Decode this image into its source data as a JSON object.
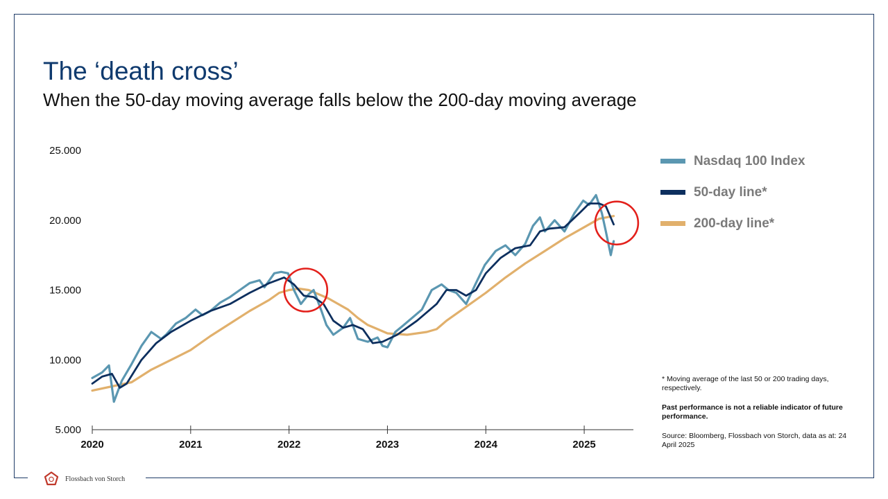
{
  "header": {
    "title": "The ‘death cross’",
    "subtitle": "When the 50-day moving average falls below the 200-day moving average"
  },
  "chart_data": {
    "type": "line",
    "title": "The ‘death cross’",
    "subtitle": "When the 50-day moving average falls below the 200-day moving average",
    "xlabel": "",
    "ylabel": "",
    "x_ticks": [
      "2020",
      "2021",
      "2022",
      "2023",
      "2024",
      "2025"
    ],
    "y_ticks": [
      "5.000",
      "10.000",
      "15.000",
      "20.000",
      "25.000"
    ],
    "xlim": [
      2020.0,
      2025.5
    ],
    "ylim": [
      5000,
      25000
    ],
    "legend_position": "right",
    "series": [
      {
        "name": "Nasdaq 100 Index",
        "color": "#5b97b1",
        "x": [
          2020.0,
          2020.1,
          2020.17,
          2020.22,
          2020.3,
          2020.4,
          2020.5,
          2020.6,
          2020.7,
          2020.75,
          2020.85,
          2020.95,
          2021.05,
          2021.12,
          2021.2,
          2021.3,
          2021.4,
          2021.5,
          2021.6,
          2021.7,
          2021.75,
          2021.85,
          2021.92,
          2021.99,
          2022.05,
          2022.12,
          2022.2,
          2022.25,
          2022.33,
          2022.38,
          2022.45,
          2022.55,
          2022.62,
          2022.7,
          2022.8,
          2022.9,
          2022.95,
          2023.0,
          2023.08,
          2023.15,
          2023.25,
          2023.35,
          2023.45,
          2023.55,
          2023.62,
          2023.7,
          2023.8,
          2023.9,
          2023.99,
          2024.1,
          2024.2,
          2024.3,
          2024.4,
          2024.48,
          2024.55,
          2024.6,
          2024.7,
          2024.8,
          2024.9,
          2024.99,
          2025.05,
          2025.12,
          2025.18,
          2025.22,
          2025.27,
          2025.3
        ],
        "values": [
          8700,
          9100,
          9600,
          7000,
          8500,
          9700,
          11000,
          12000,
          11500,
          11800,
          12600,
          13000,
          13600,
          13200,
          13500,
          14100,
          14500,
          15000,
          15500,
          15700,
          15200,
          16200,
          16300,
          16200,
          15000,
          14000,
          14700,
          15000,
          13500,
          12500,
          11800,
          12300,
          13000,
          11500,
          11300,
          11600,
          11000,
          10900,
          12000,
          12400,
          13000,
          13600,
          15000,
          15400,
          15000,
          14800,
          14000,
          15500,
          16800,
          17800,
          18200,
          17500,
          18300,
          19600,
          20200,
          19200,
          20000,
          19200,
          20500,
          21400,
          21100,
          21800,
          20500,
          19200,
          17500,
          18500
        ]
      },
      {
        "name": "50-day line*",
        "color": "#0d2f5e",
        "x": [
          2020.0,
          2020.1,
          2020.2,
          2020.28,
          2020.35,
          2020.5,
          2020.65,
          2020.8,
          2021.0,
          2021.2,
          2021.4,
          2021.6,
          2021.8,
          2021.95,
          2022.05,
          2022.15,
          2022.25,
          2022.35,
          2022.45,
          2022.55,
          2022.65,
          2022.75,
          2022.85,
          2022.95,
          2023.1,
          2023.3,
          2023.5,
          2023.6,
          2023.7,
          2023.8,
          2023.9,
          2024.0,
          2024.15,
          2024.3,
          2024.45,
          2024.55,
          2024.65,
          2024.8,
          2024.95,
          2025.05,
          2025.15,
          2025.22,
          2025.3
        ],
        "values": [
          8300,
          8800,
          9000,
          8000,
          8300,
          10000,
          11200,
          12000,
          12800,
          13500,
          14000,
          14800,
          15500,
          15900,
          15400,
          14600,
          14500,
          14000,
          12800,
          12300,
          12500,
          12200,
          11200,
          11300,
          11800,
          12800,
          14000,
          15000,
          15000,
          14600,
          15000,
          16200,
          17300,
          18000,
          18200,
          19200,
          19400,
          19500,
          20500,
          21200,
          21200,
          21000,
          19700
        ]
      },
      {
        "name": "200-day line*",
        "color": "#e1b06c",
        "x": [
          2020.0,
          2020.2,
          2020.4,
          2020.6,
          2020.8,
          2021.0,
          2021.2,
          2021.4,
          2021.6,
          2021.8,
          2021.9,
          2022.0,
          2022.1,
          2022.2,
          2022.3,
          2022.4,
          2022.5,
          2022.6,
          2022.7,
          2022.8,
          2022.9,
          2023.0,
          2023.2,
          2023.4,
          2023.5,
          2023.6,
          2023.8,
          2024.0,
          2024.2,
          2024.4,
          2024.6,
          2024.8,
          2025.0,
          2025.15,
          2025.3
        ],
        "values": [
          7800,
          8100,
          8400,
          9300,
          10000,
          10700,
          11700,
          12600,
          13500,
          14300,
          14800,
          15000,
          15100,
          15000,
          14700,
          14400,
          14000,
          13600,
          13000,
          12500,
          12200,
          11900,
          11800,
          12000,
          12200,
          12800,
          13800,
          14800,
          15900,
          16900,
          17800,
          18700,
          19500,
          20100,
          20300
        ]
      }
    ],
    "annotations": [
      {
        "type": "circle",
        "x": 2022.17,
        "y": 15000,
        "label": ""
      },
      {
        "type": "circle",
        "x": 2025.33,
        "y": 19800,
        "label": ""
      }
    ]
  },
  "notes": {
    "footnote": "* Moving average of the last 50 or 200 trading days, respectively.",
    "disclaimer": "Past performance is not a reliable indicator of future performance.",
    "source": "Source: Bloomberg, Flossbach von Storch, data as at: 24 April 2025"
  },
  "brand": {
    "name": "Flossbach von Storch",
    "logo_color": "#c0392b",
    "frame_color": "#1d3a66"
  }
}
